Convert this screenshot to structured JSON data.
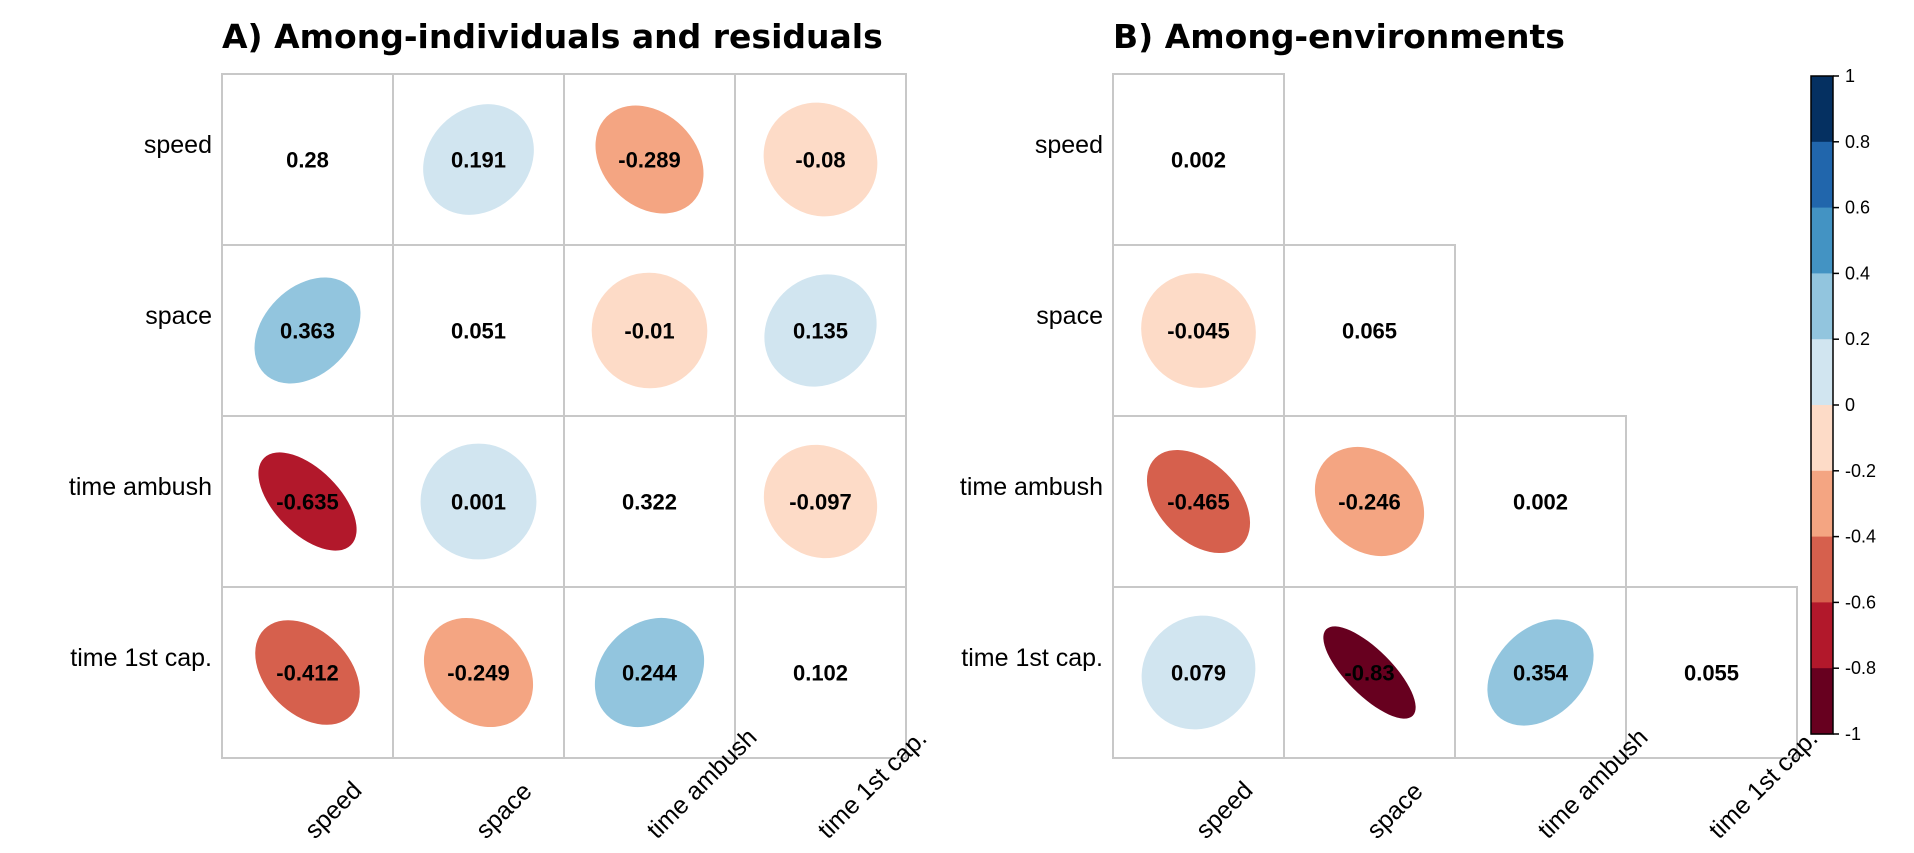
{
  "chart_data": [
    {
      "type": "heatmap",
      "title": "A) Among-individuals and residuals",
      "variables": [
        "speed",
        "space",
        "time ambush",
        "time 1st cap."
      ],
      "layout": "full",
      "diagonal_display": "text",
      "matrix": [
        [
          0.28,
          0.191,
          -0.289,
          -0.08
        ],
        [
          0.363,
          0.051,
          -0.01,
          0.135
        ],
        [
          -0.635,
          0.001,
          0.322,
          -0.097
        ],
        [
          -0.412,
          -0.249,
          0.244,
          0.102
        ]
      ],
      "labels": [
        [
          "0.28",
          "0.191",
          "-0.289",
          "-0.08"
        ],
        [
          "0.363",
          "0.051",
          "-0.01",
          "0.135"
        ],
        [
          "-0.635",
          "0.001",
          "0.322",
          "-0.097"
        ],
        [
          "-0.412",
          "-0.249",
          "0.244",
          "0.102"
        ]
      ]
    },
    {
      "type": "heatmap",
      "title": "B) Among-environments",
      "variables": [
        "speed",
        "space",
        "time ambush",
        "time 1st cap."
      ],
      "layout": "lower",
      "diagonal_display": "text",
      "matrix": [
        [
          0.002,
          null,
          null,
          null
        ],
        [
          -0.045,
          0.065,
          null,
          null
        ],
        [
          -0.465,
          -0.246,
          0.002,
          null
        ],
        [
          0.079,
          -0.83,
          0.354,
          0.055
        ]
      ],
      "labels": [
        [
          "0.002",
          null,
          null,
          null
        ],
        [
          "-0.045",
          "0.065",
          null,
          null
        ],
        [
          "-0.465",
          "-0.246",
          "0.002",
          null
        ],
        [
          "0.079",
          "-0.83",
          "0.354",
          "0.055"
        ]
      ]
    }
  ],
  "colorbar": {
    "range": [
      -1,
      1
    ],
    "ticks": [
      "1",
      "0.8",
      "0.6",
      "0.4",
      "0.2",
      "0",
      "-0.2",
      "-0.4",
      "-0.6",
      "-0.8",
      "-1"
    ],
    "colors_top_to_bottom": [
      "#053061",
      "#2166ac",
      "#4393c3",
      "#92c5de",
      "#d1e5f0",
      "#fddbc7",
      "#f4a582",
      "#d6604d",
      "#b2182b",
      "#67001f"
    ]
  }
}
